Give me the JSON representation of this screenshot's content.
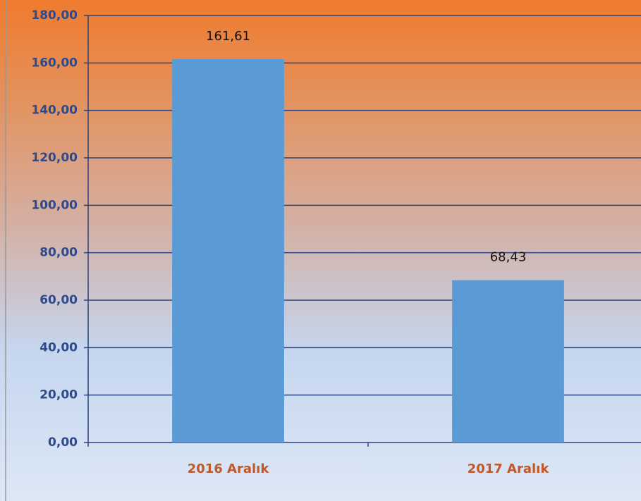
{
  "chart_data": {
    "type": "bar",
    "categories": [
      "2016 Aralık",
      "2017 Aralık"
    ],
    "values": [
      161.61,
      68.43
    ],
    "value_labels": [
      "161,61",
      "68,43"
    ],
    "color": "#5b9bd5",
    "ylim": [
      0,
      180
    ],
    "yticks": [
      {
        "value": 0,
        "label": "0,00"
      },
      {
        "value": 20,
        "label": "20,00"
      },
      {
        "value": 40,
        "label": "40,00"
      },
      {
        "value": 60,
        "label": "60,00"
      },
      {
        "value": 80,
        "label": "80,00"
      },
      {
        "value": 100,
        "label": "100,00"
      },
      {
        "value": 120,
        "label": "120,00"
      },
      {
        "value": 140,
        "label": "140,00"
      },
      {
        "value": 160,
        "label": "160,00"
      },
      {
        "value": 180,
        "label": "180,00"
      }
    ],
    "grid": true
  }
}
